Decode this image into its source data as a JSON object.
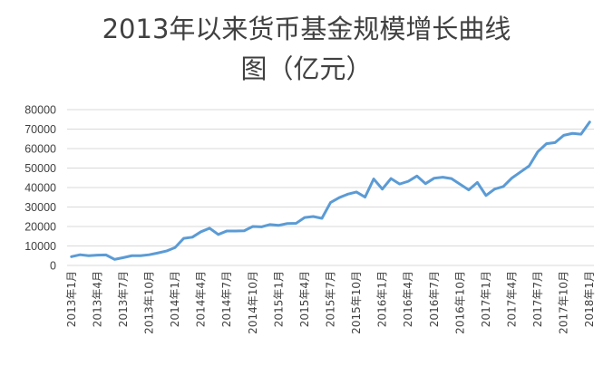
{
  "chart_data": {
    "type": "line",
    "title_line1": "2013年以来货币基金规模增长曲线",
    "title_line2": "图（亿元）",
    "ylim": [
      0,
      80000
    ],
    "yticks": [
      "0",
      "10000",
      "20000",
      "30000",
      "40000",
      "50000",
      "60000",
      "70000",
      "80000"
    ],
    "grid": true,
    "line_color": "#5b9bd5",
    "x_labels": [
      "2013年1月",
      "2013年4月",
      "2013年7月",
      "2013年10月",
      "2014年1月",
      "2014年4月",
      "2014年7月",
      "2014年10月",
      "2015年1月",
      "2015年4月",
      "2015年7月",
      "2015年10月",
      "2016年1月",
      "2016年4月",
      "2016年7月",
      "2016年10月",
      "2017年1月",
      "2017年4月",
      "2017年7月",
      "2017年10月",
      "2018年1月"
    ],
    "series": [
      {
        "values": [
          4500,
          5500,
          5000,
          5300,
          5400,
          3100,
          4000,
          5000,
          5000,
          5500,
          6400,
          7400,
          9200,
          13900,
          14500,
          17300,
          19100,
          15900,
          17700,
          17700,
          17800,
          20000,
          19800,
          21000,
          20600,
          21500,
          21600,
          24600,
          25100,
          24200,
          32300,
          34800,
          36600,
          37700,
          35100,
          44400,
          39200,
          44600,
          41800,
          43200,
          45900,
          42000,
          44800,
          45300,
          44600,
          41700,
          38800,
          42600,
          35900,
          39200,
          40500,
          44900,
          48000,
          51100,
          58400,
          62500,
          63100,
          66800,
          67800,
          67400,
          73600
        ]
      }
    ]
  }
}
